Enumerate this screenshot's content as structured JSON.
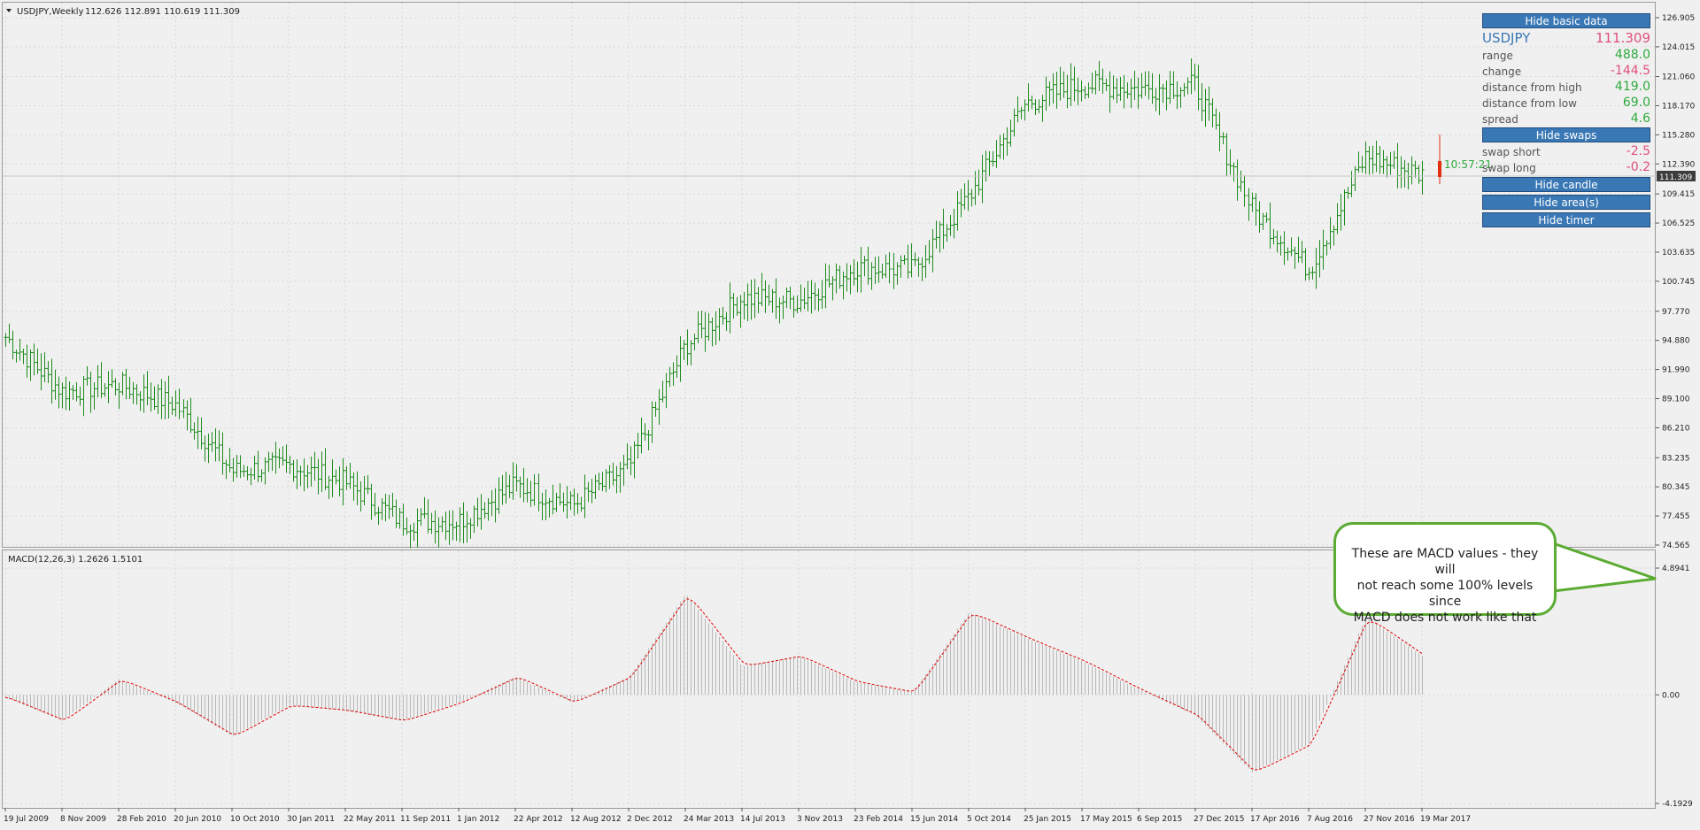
{
  "header": {
    "title": "USDJPY,Weekly",
    "ohlc": "112.626 112.891 110.619 111.309",
    "macd_title": "MACD(12,26,3) 1.2626 1.5101"
  },
  "timer": "10:57:21",
  "current_price_label": "111.309",
  "panel": {
    "hide_basic_data": "Hide basic data",
    "symbol": "USDJPY",
    "price": "111.309",
    "rows": [
      {
        "label": "range",
        "value": "488.0",
        "sign": "pos"
      },
      {
        "label": "change",
        "value": "-144.5",
        "sign": "neg"
      },
      {
        "label": "distance from high",
        "value": "419.0",
        "sign": "pos"
      },
      {
        "label": "distance from low",
        "value": "69.0",
        "sign": "pos"
      },
      {
        "label": "spread",
        "value": "4.6",
        "sign": "pos"
      }
    ],
    "hide_swaps": "Hide swaps",
    "swaps": [
      {
        "label": "swap short",
        "value": "-2.5",
        "sign": "neg"
      },
      {
        "label": "swap long",
        "value": "-0.2",
        "sign": "neg"
      }
    ],
    "hide_candle": "Hide candle",
    "hide_areas": "Hide area(s)",
    "hide_timer": "Hide timer"
  },
  "callout": {
    "text": "These are MACD values - they will\nnot reach some 100% levels since\nMACD does not work like that"
  },
  "colors": {
    "bar": "#1f8c1f",
    "macd_hist": "#b8b8b8",
    "signal": "#e00000",
    "current_candle": "#e03010",
    "button": "#3a78b5"
  },
  "chart_data": [
    {
      "type": "ohlc",
      "title": "USDJPY,Weekly",
      "price_axis_ticks": [
        "126.905",
        "124.015",
        "121.060",
        "118.170",
        "115.280",
        "112.390",
        "109.415",
        "106.525",
        "103.635",
        "100.745",
        "97.770",
        "94.880",
        "91.990",
        "89.100",
        "86.210",
        "83.235",
        "80.345",
        "77.455",
        "74.565"
      ],
      "ylim": [
        74.565,
        126.905
      ],
      "x_labels": [
        "19 Jul 2009",
        "8 Nov 2009",
        "28 Feb 2010",
        "20 Jun 2010",
        "10 Oct 2010",
        "30 Jan 2011",
        "22 May 2011",
        "11 Sep 2011",
        "1 Jan 2012",
        "22 Apr 2012",
        "12 Aug 2012",
        "2 Dec 2012",
        "24 Mar 2013",
        "14 Jul 2013",
        "3 Nov 2013",
        "23 Feb 2014",
        "15 Jun 2014",
        "5 Oct 2014",
        "25 Jan 2015",
        "17 May 2015",
        "6 Sep 2015",
        "27 Dec 2015",
        "17 Apr 2016",
        "7 Aug 2016",
        "27 Nov 2016",
        "19 Mar 2017"
      ],
      "close_path": [
        {
          "x": "19 Jul 2009",
          "y": 95.2
        },
        {
          "x": "8 Nov 2009",
          "y": 89.8
        },
        {
          "x": "28 Feb 2010",
          "y": 90.5
        },
        {
          "x": "20 Jun 2010",
          "y": 88.5
        },
        {
          "x": "10 Oct 2010",
          "y": 81.9
        },
        {
          "x": "30 Jan 2011",
          "y": 82.5
        },
        {
          "x": "22 May 2011",
          "y": 80.8
        },
        {
          "x": "11 Sep 2011",
          "y": 76.9
        },
        {
          "x": "1 Jan 2012",
          "y": 76.9
        },
        {
          "x": "22 Apr 2012",
          "y": 80.5
        },
        {
          "x": "12 Aug 2012",
          "y": 78.5
        },
        {
          "x": "2 Dec 2012",
          "y": 82.3
        },
        {
          "x": "24 Mar 2013",
          "y": 94.4
        },
        {
          "x": "14 Jul 2013",
          "y": 99.1
        },
        {
          "x": "3 Nov 2013",
          "y": 98.8
        },
        {
          "x": "23 Feb 2014",
          "y": 102.1
        },
        {
          "x": "15 Jun 2014",
          "y": 101.9
        },
        {
          "x": "5 Oct 2014",
          "y": 109.1
        },
        {
          "x": "25 Jan 2015",
          "y": 118.4
        },
        {
          "x": "17 May 2015",
          "y": 120.3
        },
        {
          "x": "6 Sep 2015",
          "y": 119.8
        },
        {
          "x": "27 Dec 2015",
          "y": 120.2
        },
        {
          "x": "17 Apr 2016",
          "y": 107.9
        },
        {
          "x": "7 Aug 2016",
          "y": 101.9
        },
        {
          "x": "27 Nov 2016",
          "y": 113.1
        },
        {
          "x": "19 Mar 2017",
          "y": 111.3
        }
      ],
      "current_price": 111.309
    },
    {
      "type": "bar",
      "title": "MACD(12,26,3) 1.2626 1.5101",
      "axis_ticks": [
        "4.8941",
        "0.00",
        "-4.1929"
      ],
      "ylim": [
        -4.1929,
        4.8941
      ],
      "macd_path": [
        {
          "x": "19 Jul 2009",
          "y": -0.1
        },
        {
          "x": "8 Nov 2009",
          "y": -1.0
        },
        {
          "x": "28 Feb 2010",
          "y": 0.6
        },
        {
          "x": "20 Jun 2010",
          "y": -0.3
        },
        {
          "x": "10 Oct 2010",
          "y": -1.6
        },
        {
          "x": "30 Jan 2011",
          "y": -0.4
        },
        {
          "x": "22 May 2011",
          "y": -0.6
        },
        {
          "x": "11 Sep 2011",
          "y": -1.0
        },
        {
          "x": "1 Jan 2012",
          "y": -0.3
        },
        {
          "x": "22 Apr 2012",
          "y": 0.7
        },
        {
          "x": "12 Aug 2012",
          "y": -0.3
        },
        {
          "x": "2 Dec 2012",
          "y": 0.7
        },
        {
          "x": "24 Mar 2013",
          "y": 3.9
        },
        {
          "x": "14 Jul 2013",
          "y": 1.1
        },
        {
          "x": "3 Nov 2013",
          "y": 1.5
        },
        {
          "x": "23 Feb 2014",
          "y": 0.5
        },
        {
          "x": "15 Jun 2014",
          "y": 0.1
        },
        {
          "x": "5 Oct 2014",
          "y": 3.2
        },
        {
          "x": "25 Jan 2015",
          "y": 2.2
        },
        {
          "x": "17 May 2015",
          "y": 1.3
        },
        {
          "x": "6 Sep 2015",
          "y": 0.2
        },
        {
          "x": "27 Dec 2015",
          "y": -0.8
        },
        {
          "x": "17 Apr 2016",
          "y": -3.0
        },
        {
          "x": "7 Aug 2016",
          "y": -1.9
        },
        {
          "x": "27 Nov 2016",
          "y": 3.0
        },
        {
          "x": "19 Mar 2017",
          "y": 1.5
        }
      ]
    }
  ]
}
